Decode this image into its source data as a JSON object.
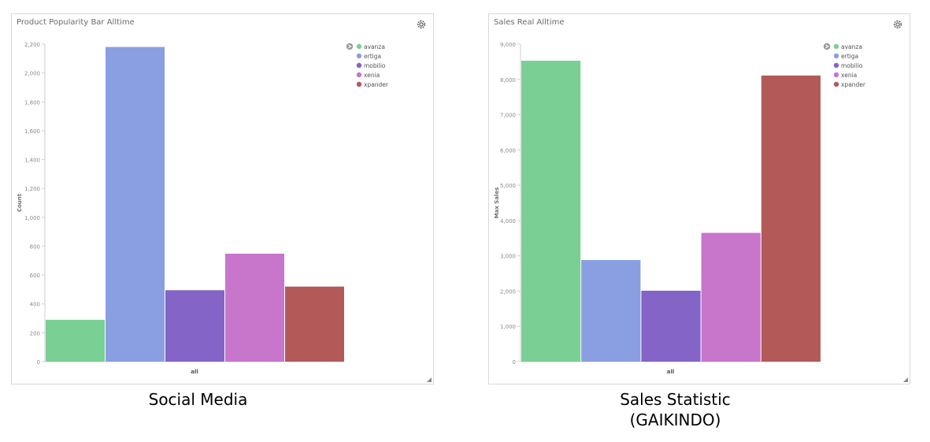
{
  "panels": {
    "left": {
      "title": "Product Popularity Bar Alltime"
    },
    "right": {
      "title": "Sales Real Alltime"
    }
  },
  "captions": {
    "left": "Social Media",
    "right_line1": "Sales Statistic",
    "right_line2": "(GAIKINDO)"
  },
  "colors": {
    "avanza": "#7acf95",
    "ertiga": "#8a9fe2",
    "mobilio": "#8464c6",
    "xenia": "#c875cc",
    "xpander": "#b35a59",
    "axis": "#cfcfcf",
    "text": "#8a8a8a"
  },
  "icons": {
    "settings": "gear-icon",
    "legend_toggle": "chevron-right-circle-icon",
    "resize": "resize-corner-icon"
  },
  "chart_data": [
    {
      "type": "bar",
      "title": "Product Popularity Bar Alltime",
      "xlabel": "all",
      "ylabel": "Count",
      "categories": [
        "all"
      ],
      "ylim": [
        0,
        2200
      ],
      "yticks": [
        0,
        200,
        400,
        600,
        800,
        1000,
        1200,
        1400,
        1600,
        1800,
        2000,
        2200
      ],
      "ytick_labels": [
        "0",
        "200",
        "400",
        "600",
        "800",
        "1,000",
        "1,200",
        "1,400",
        "1,600",
        "1,800",
        "2,000",
        "2,200"
      ],
      "legend_position": "top-right",
      "grid": false,
      "series": [
        {
          "name": "avanza",
          "values": [
            290
          ]
        },
        {
          "name": "ertiga",
          "values": [
            2180
          ]
        },
        {
          "name": "mobilio",
          "values": [
            495
          ]
        },
        {
          "name": "xenia",
          "values": [
            748
          ]
        },
        {
          "name": "xpander",
          "values": [
            520
          ]
        }
      ]
    },
    {
      "type": "bar",
      "title": "Sales Real Alltime",
      "xlabel": "all",
      "ylabel": "Max Sales",
      "categories": [
        "all"
      ],
      "ylim": [
        0,
        9000
      ],
      "yticks": [
        0,
        1000,
        2000,
        3000,
        4000,
        5000,
        6000,
        7000,
        8000,
        9000
      ],
      "ytick_labels": [
        "0",
        "1,000",
        "2,000",
        "3,000",
        "4,000",
        "5,000",
        "6,000",
        "7,000",
        "8,000",
        "9,000"
      ],
      "legend_position": "top-right",
      "grid": false,
      "series": [
        {
          "name": "avanza",
          "values": [
            8530
          ]
        },
        {
          "name": "ertiga",
          "values": [
            2880
          ]
        },
        {
          "name": "mobilio",
          "values": [
            2010
          ]
        },
        {
          "name": "xenia",
          "values": [
            3650
          ]
        },
        {
          "name": "xpander",
          "values": [
            8110
          ]
        }
      ]
    }
  ]
}
